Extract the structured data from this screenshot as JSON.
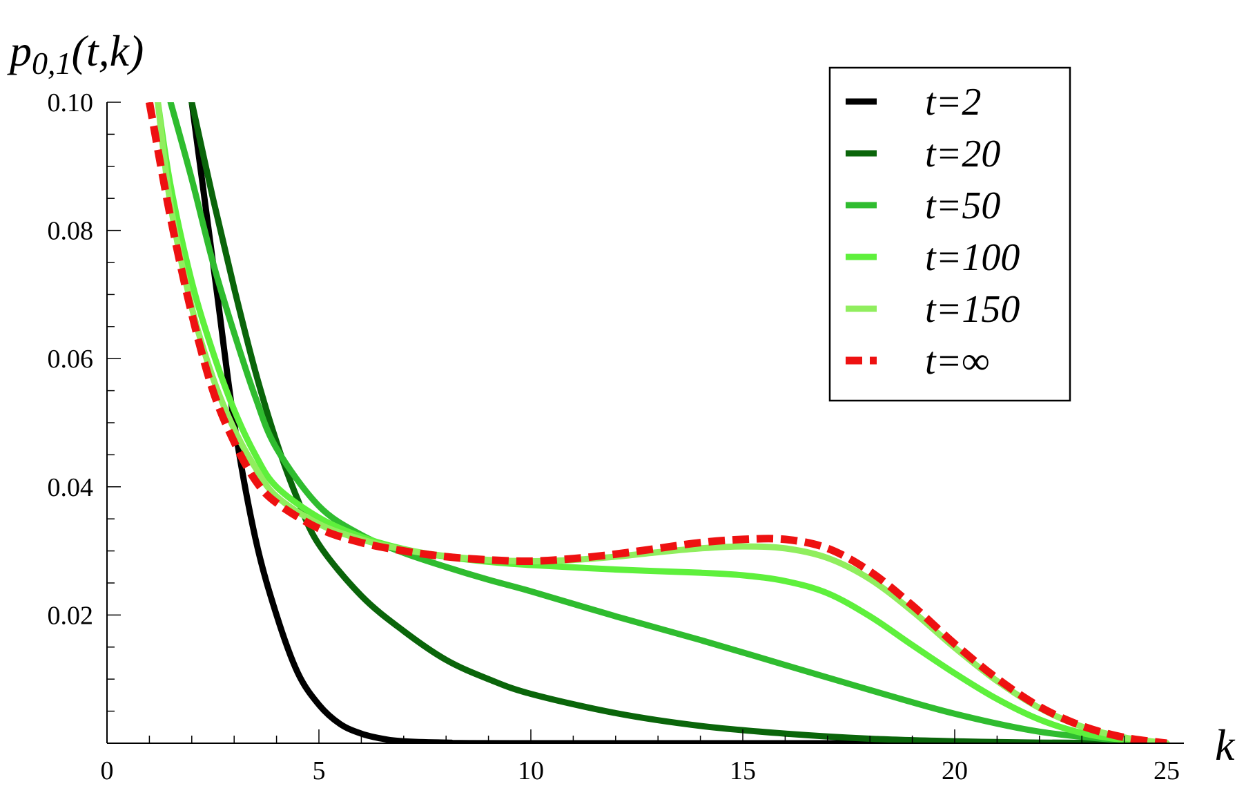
{
  "chart_data": {
    "type": "line",
    "title": "",
    "xlabel": "k",
    "ylabel": "p0,1(t,k)",
    "ylabel_parts": {
      "main": "p",
      "sub": "0,1",
      "args": "(t,k)"
    },
    "xlim": [
      0,
      25
    ],
    "ylim": [
      0,
      0.1
    ],
    "x_ticks": [
      0,
      5,
      10,
      15,
      20,
      25
    ],
    "x_tick_labels": [
      "0",
      "5",
      "10",
      "15",
      "20",
      "25"
    ],
    "y_ticks": [
      0.02,
      0.04,
      0.06,
      0.08,
      0.1
    ],
    "y_tick_labels": [
      "0.02",
      "0.04",
      "0.06",
      "0.08",
      "0.10"
    ],
    "grid": false,
    "legend_position": "top-right",
    "series": [
      {
        "name": "t=2",
        "color": "#000000",
        "dashed": false,
        "points": [
          [
            2.0,
            0.1
          ],
          [
            2.3,
            0.085
          ],
          [
            2.6,
            0.07
          ],
          [
            3.0,
            0.05
          ],
          [
            3.5,
            0.032
          ],
          [
            4.0,
            0.02
          ],
          [
            4.5,
            0.011
          ],
          [
            5.0,
            0.006
          ],
          [
            5.5,
            0.003
          ],
          [
            6.0,
            0.0015
          ],
          [
            6.5,
            0.0007
          ],
          [
            7.0,
            0.0003
          ],
          [
            8.0,
            0.0001
          ],
          [
            10.0,
            0.0
          ],
          [
            25.0,
            0.0
          ]
        ]
      },
      {
        "name": "t=20",
        "color": "#0a650a",
        "dashed": false,
        "points": [
          [
            2.0,
            0.1
          ],
          [
            2.5,
            0.085
          ],
          [
            3.0,
            0.071
          ],
          [
            3.5,
            0.058
          ],
          [
            4.0,
            0.047
          ],
          [
            4.5,
            0.038
          ],
          [
            5.0,
            0.031
          ],
          [
            6.0,
            0.023
          ],
          [
            7.0,
            0.0175
          ],
          [
            8.0,
            0.013
          ],
          [
            9.0,
            0.01
          ],
          [
            10.0,
            0.0077
          ],
          [
            12.0,
            0.0047
          ],
          [
            14.0,
            0.0027
          ],
          [
            16.0,
            0.0015
          ],
          [
            18.0,
            0.0007
          ],
          [
            20.0,
            0.0003
          ],
          [
            22.0,
            0.0001
          ],
          [
            25.0,
            0.0
          ]
        ]
      },
      {
        "name": "t=50",
        "color": "#2fbc2f",
        "dashed": false,
        "points": [
          [
            1.5,
            0.1
          ],
          [
            2.0,
            0.088
          ],
          [
            2.5,
            0.075
          ],
          [
            3.0,
            0.064
          ],
          [
            3.5,
            0.054
          ],
          [
            4.0,
            0.046
          ],
          [
            5.0,
            0.037
          ],
          [
            6.0,
            0.0325
          ],
          [
            7.0,
            0.0297
          ],
          [
            8.0,
            0.0275
          ],
          [
            9.0,
            0.0255
          ],
          [
            10.0,
            0.0237
          ],
          [
            12.0,
            0.0198
          ],
          [
            14.0,
            0.0161
          ],
          [
            16.0,
            0.0122
          ],
          [
            18.0,
            0.0083
          ],
          [
            20.0,
            0.0046
          ],
          [
            22.0,
            0.0018
          ],
          [
            24.0,
            0.0004
          ],
          [
            25.0,
            0.0
          ]
        ]
      },
      {
        "name": "t=100",
        "color": "#5ef03c",
        "dashed": false,
        "points": [
          [
            1.2,
            0.1
          ],
          [
            1.5,
            0.087
          ],
          [
            2.0,
            0.072
          ],
          [
            2.5,
            0.061
          ],
          [
            3.0,
            0.052
          ],
          [
            3.5,
            0.045
          ],
          [
            4.0,
            0.04
          ],
          [
            5.0,
            0.0352
          ],
          [
            6.0,
            0.0322
          ],
          [
            7.0,
            0.0303
          ],
          [
            8.0,
            0.0291
          ],
          [
            9.0,
            0.0283
          ],
          [
            10.0,
            0.0278
          ],
          [
            12.0,
            0.0271
          ],
          [
            14.0,
            0.0266
          ],
          [
            15.0,
            0.0262
          ],
          [
            16.0,
            0.0253
          ],
          [
            17.0,
            0.0234
          ],
          [
            18.0,
            0.0198
          ],
          [
            19.0,
            0.0153
          ],
          [
            20.0,
            0.0109
          ],
          [
            21.0,
            0.0069
          ],
          [
            22.0,
            0.0037
          ],
          [
            23.0,
            0.0016
          ],
          [
            24.0,
            0.0005
          ],
          [
            25.0,
            0.0
          ]
        ]
      },
      {
        "name": "t=150",
        "color": "#90ee5e",
        "dashed": false,
        "points": [
          [
            1.2,
            0.1
          ],
          [
            1.5,
            0.084
          ],
          [
            2.0,
            0.068
          ],
          [
            2.5,
            0.057
          ],
          [
            3.0,
            0.049
          ],
          [
            3.5,
            0.043
          ],
          [
            4.0,
            0.0385
          ],
          [
            5.0,
            0.0342
          ],
          [
            6.0,
            0.0318
          ],
          [
            7.0,
            0.0302
          ],
          [
            8.0,
            0.0292
          ],
          [
            9.0,
            0.0286
          ],
          [
            10.0,
            0.0284
          ],
          [
            11.0,
            0.0286
          ],
          [
            12.0,
            0.0291
          ],
          [
            13.0,
            0.0298
          ],
          [
            14.0,
            0.0304
          ],
          [
            15.0,
            0.0307
          ],
          [
            16.0,
            0.0304
          ],
          [
            17.0,
            0.0289
          ],
          [
            18.0,
            0.0256
          ],
          [
            19.0,
            0.0206
          ],
          [
            20.0,
            0.0149
          ],
          [
            21.0,
            0.0097
          ],
          [
            22.0,
            0.0055
          ],
          [
            23.0,
            0.0026
          ],
          [
            24.0,
            0.0009
          ],
          [
            25.0,
            0.0
          ]
        ]
      },
      {
        "name": "t=∞",
        "color": "#ee1111",
        "dashed": true,
        "points": [
          [
            1.0,
            0.1
          ],
          [
            1.5,
            0.082
          ],
          [
            2.0,
            0.067
          ],
          [
            2.5,
            0.055
          ],
          [
            3.0,
            0.047
          ],
          [
            3.5,
            0.041
          ],
          [
            4.0,
            0.0375
          ],
          [
            5.0,
            0.0335
          ],
          [
            6.0,
            0.0313
          ],
          [
            7.0,
            0.03
          ],
          [
            8.0,
            0.0291
          ],
          [
            9.0,
            0.0286
          ],
          [
            10.0,
            0.0284
          ],
          [
            11.0,
            0.0288
          ],
          [
            12.0,
            0.0295
          ],
          [
            13.0,
            0.0304
          ],
          [
            14.0,
            0.0313
          ],
          [
            15.0,
            0.0318
          ],
          [
            16.0,
            0.0318
          ],
          [
            17.0,
            0.0304
          ],
          [
            18.0,
            0.0268
          ],
          [
            19.0,
            0.0215
          ],
          [
            20.0,
            0.0155
          ],
          [
            21.0,
            0.0101
          ],
          [
            22.0,
            0.0057
          ],
          [
            23.0,
            0.0027
          ],
          [
            24.0,
            0.0009
          ],
          [
            25.0,
            0.0
          ]
        ]
      }
    ]
  }
}
